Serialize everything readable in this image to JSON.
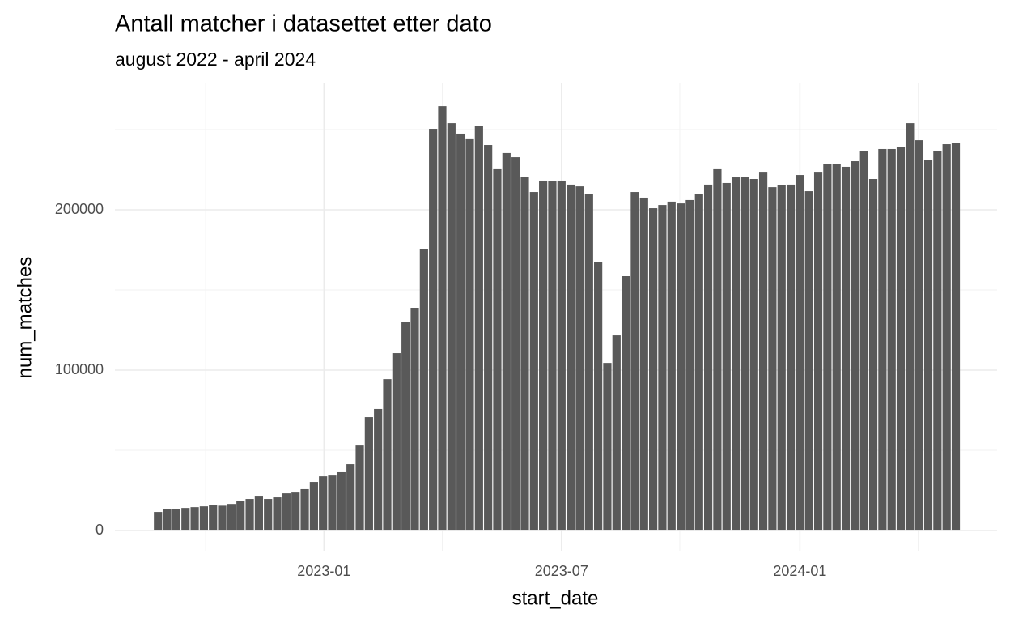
{
  "chart_data": {
    "type": "bar",
    "title": "Antall matcher i datasettet etter dato",
    "subtitle": "august 2022 - april 2024",
    "x_label": "start_date",
    "y_label": "num_matches",
    "color": "#595959",
    "categories": [
      null,
      null,
      null,
      null,
      null,
      null,
      null,
      null,
      null,
      null,
      null,
      null,
      null,
      null,
      null,
      null,
      null,
      null,
      null,
      null,
      null,
      null,
      null,
      null,
      null,
      null,
      null,
      null,
      null,
      null,
      null,
      null,
      null,
      null,
      null,
      null,
      null,
      null,
      null,
      null,
      null,
      null,
      null,
      null,
      null,
      null,
      null,
      null,
      null,
      null,
      null,
      null,
      null,
      null,
      null,
      null,
      null,
      null,
      null,
      null,
      null,
      null,
      null,
      null,
      null,
      null,
      null,
      null,
      null,
      null,
      null,
      null,
      null,
      null,
      null,
      null,
      null,
      null,
      null,
      null,
      null,
      null,
      null,
      null,
      null,
      null,
      null,
      null
    ],
    "values": [
      11600,
      13600,
      13600,
      14100,
      14600,
      15100,
      15700,
      15500,
      16600,
      18700,
      19700,
      21200,
      19700,
      20700,
      23200,
      23700,
      25800,
      30300,
      33800,
      34300,
      36400,
      41400,
      53000,
      70700,
      75800,
      94400,
      110600,
      130300,
      138900,
      175300,
      250500,
      264600,
      254000,
      247500,
      244000,
      252500,
      240400,
      225300,
      235400,
      232800,
      220700,
      211100,
      218200,
      217700,
      218200,
      215700,
      214600,
      210100,
      167200,
      104500,
      121700,
      158600,
      211100,
      207600,
      201000,
      203000,
      205100,
      204000,
      206100,
      210100,
      215700,
      225300,
      216700,
      220200,
      220700,
      219200,
      223700,
      214100,
      215200,
      215700,
      221700,
      211600,
      223700,
      228300,
      228300,
      226800,
      230300,
      236400,
      219200,
      237900,
      237900,
      238900,
      254000,
      243400,
      231300,
      236400,
      240900,
      241900
    ],
    "xlim": [
      -4.7,
      91.5
    ],
    "xticks": [
      {
        "value": 18.1,
        "label": "2023-01"
      },
      {
        "value": 44.0,
        "label": "2023-07"
      },
      {
        "value": 70.0,
        "label": "2024-01"
      }
    ],
    "x_minor_ticks": [
      5.2,
      31.0,
      56.9,
      82.9
    ],
    "ylim": [
      -12600,
      279300
    ],
    "yticks": [
      0,
      100000,
      200000
    ],
    "y_minor_ticks": [
      50000,
      150000,
      250000
    ],
    "grid": true
  }
}
